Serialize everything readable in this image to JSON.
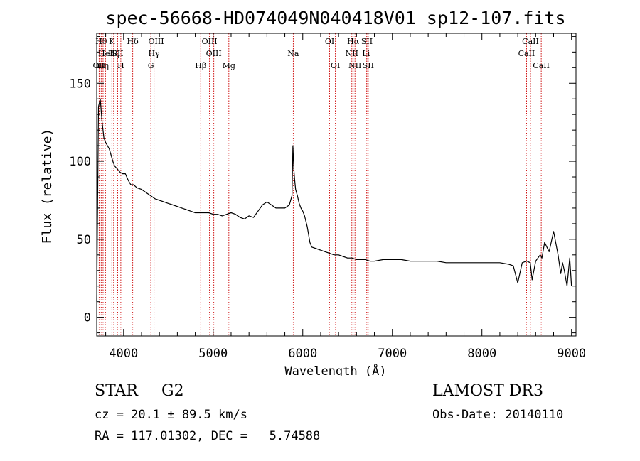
{
  "chart_data": {
    "type": "line",
    "title": "spec-56668-HD074049N040418V01_sp12-107.fits",
    "xlabel": "Wavelength (Å)",
    "ylabel": "Flux (relative)",
    "xlim": [
      3700,
      9050
    ],
    "ylim": [
      -12,
      182
    ],
    "xticks": [
      4000,
      5000,
      6000,
      7000,
      8000,
      9000
    ],
    "yticks": [
      0,
      50,
      100,
      150
    ],
    "grid": false,
    "line_color": "#000000",
    "marker_line_color": "#cc0000",
    "series": [
      {
        "x": [
          3700,
          3720,
          3740,
          3760,
          3780,
          3800,
          3820,
          3840,
          3860,
          3880,
          3900,
          3930,
          3960,
          3990,
          4020,
          4050,
          4080,
          4110,
          4150,
          4200,
          4250,
          4300,
          4350,
          4400,
          4450,
          4500,
          4550,
          4600,
          4650,
          4700,
          4750,
          4800,
          4850,
          4900,
          4950,
          5000,
          5050,
          5100,
          5150,
          5200,
          5250,
          5300,
          5350,
          5400,
          5450,
          5500,
          5550,
          5600,
          5650,
          5700,
          5750,
          5800,
          5850,
          5880,
          5890,
          5900,
          5910,
          5920,
          5940,
          5960,
          5980,
          6000,
          6020,
          6050,
          6080,
          6100,
          6150,
          6200,
          6250,
          6300,
          6350,
          6400,
          6450,
          6500,
          6550,
          6600,
          6650,
          6700,
          6750,
          6800,
          6900,
          7000,
          7100,
          7200,
          7300,
          7400,
          7500,
          7600,
          7700,
          7800,
          7900,
          8000,
          8100,
          8200,
          8300,
          8350,
          8400,
          8450,
          8500,
          8540,
          8560,
          8600,
          8650,
          8670,
          8700,
          8750,
          8800,
          8850,
          8880,
          8900,
          8920,
          8950,
          8980,
          9000
        ],
        "y": [
          10,
          135,
          140,
          125,
          115,
          112,
          110,
          108,
          104,
          100,
          97,
          95,
          93,
          92,
          92,
          88,
          85,
          85,
          83,
          82,
          80,
          78,
          76,
          75,
          74,
          73,
          72,
          71,
          70,
          69,
          68,
          67,
          67,
          67,
          67,
          66,
          66,
          65,
          66,
          67,
          66,
          64,
          63,
          65,
          64,
          68,
          72,
          74,
          72,
          70,
          70,
          70,
          72,
          78,
          110,
          95,
          88,
          82,
          78,
          73,
          70,
          68,
          65,
          58,
          48,
          45,
          44,
          43,
          42,
          41,
          40,
          40,
          39,
          38,
          38,
          37,
          37,
          37,
          36,
          36,
          37,
          37,
          37,
          36,
          36,
          36,
          36,
          35,
          35,
          35,
          35,
          35,
          35,
          35,
          34,
          33,
          22,
          35,
          36,
          35,
          24,
          36,
          40,
          38,
          48,
          42,
          55,
          40,
          28,
          35,
          30,
          20,
          38,
          20
        ]
      }
    ],
    "lines": [
      {
        "x": 3727,
        "label": "OII",
        "row": 2
      },
      {
        "x": 3750,
        "label": "Hθ",
        "row": 0
      },
      {
        "x": 3771,
        "label": "Hη",
        "row": 2
      },
      {
        "x": 3798,
        "label": "HeI",
        "row": 1
      },
      {
        "x": 3869,
        "label": "K",
        "row": 0
      },
      {
        "x": 3889,
        "label": "Hζ",
        "row": 1
      },
      {
        "x": 3934,
        "label": "SII",
        "row": 1
      },
      {
        "x": 3969,
        "label": "H",
        "row": 2
      },
      {
        "x": 4102,
        "label": "Hδ",
        "row": 0
      },
      {
        "x": 4304,
        "label": "G",
        "row": 2
      },
      {
        "x": 4340,
        "label": "Hγ",
        "row": 1
      },
      {
        "x": 4363,
        "label": "OIII",
        "row": 0
      },
      {
        "x": 4861,
        "label": "Hβ",
        "row": 2
      },
      {
        "x": 4959,
        "label": "OIII",
        "row": 0
      },
      {
        "x": 5007,
        "label": "OIII",
        "row": 1
      },
      {
        "x": 5175,
        "label": "Mg",
        "row": 2
      },
      {
        "x": 5894,
        "label": "Na",
        "row": 1
      },
      {
        "x": 6300,
        "label": "OI",
        "row": 0
      },
      {
        "x": 6364,
        "label": "OI",
        "row": 2
      },
      {
        "x": 6548,
        "label": "NII",
        "row": 1
      },
      {
        "x": 6563,
        "label": "Hα",
        "row": 0
      },
      {
        "x": 6583,
        "label": "NII",
        "row": 2
      },
      {
        "x": 6707,
        "label": "Li",
        "row": 1
      },
      {
        "x": 6716,
        "label": "SII",
        "row": 0
      },
      {
        "x": 6731,
        "label": "SII",
        "row": 2
      },
      {
        "x": 8498,
        "label": "CaII",
        "row": 1
      },
      {
        "x": 8542,
        "label": "CaII",
        "row": 0
      },
      {
        "x": 8662,
        "label": "CaII",
        "row": 2
      }
    ]
  },
  "info": {
    "object_class": "STAR",
    "subclass": "G2",
    "survey": "LAMOST DR3",
    "cz": "cz = 20.1 ± 89.5 km/s",
    "obs_date": "Obs-Date: 20140110",
    "coords": "RA = 117.01302, DEC =   5.74588"
  }
}
